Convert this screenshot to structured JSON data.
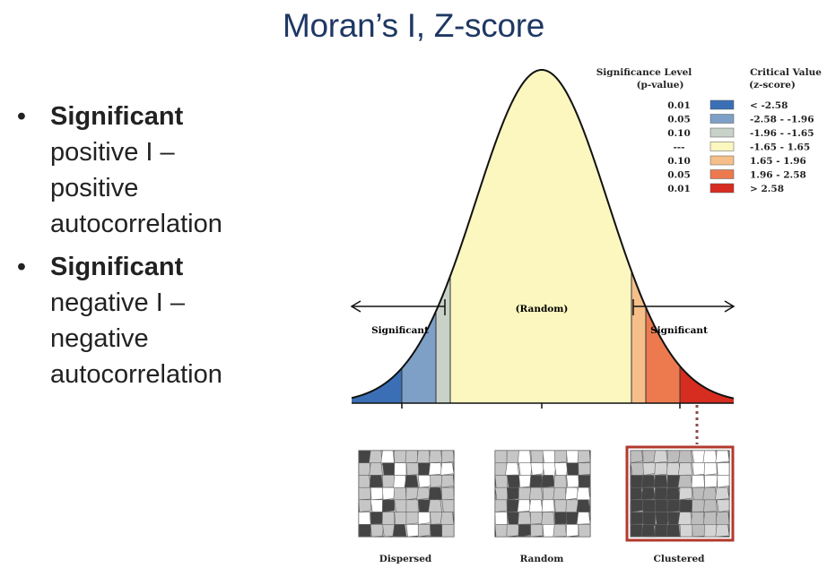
{
  "title": "Moran’s I,  Z-score",
  "bullets": [
    {
      "marker": "•",
      "strong": "Significant",
      "lines": [
        "positive I –",
        "positive",
        "autocorrelation"
      ]
    },
    {
      "marker": "•",
      "strong": "Significant",
      "lines": [
        "negative I –",
        "negative",
        "autocorrelation"
      ]
    }
  ],
  "diagram": {
    "labels": {
      "random_center": "(Random)",
      "significant_left": "Significant",
      "significant_right": "Significant"
    },
    "legend": {
      "header_left": [
        "Significance Level",
        "(p-value)"
      ],
      "header_right": [
        "Critical Value",
        "(z-score)"
      ],
      "rows": [
        {
          "p": "0.01",
          "z": "< -2.58",
          "color": "#3b6fb5"
        },
        {
          "p": "0.05",
          "z": "-2.58 - -1.96",
          "color": "#7fa0c6"
        },
        {
          "p": "0.10",
          "z": "-1.96 - -1.65",
          "color": "#c8d2c8"
        },
        {
          "p": "---",
          "z": "-1.65 - 1.65",
          "color": "#fbf7bf"
        },
        {
          "p": "0.10",
          "z": "1.65 - 1.96",
          "color": "#f6bf8a"
        },
        {
          "p": "0.05",
          "z": "1.96 - 2.58",
          "color": "#ec7a4e"
        },
        {
          "p": "0.01",
          "z": "> 2.58",
          "color": "#d62d20"
        }
      ]
    },
    "maps": [
      {
        "label": "Dispersed"
      },
      {
        "label": "Random"
      },
      {
        "label": "Clustered"
      }
    ],
    "colors": {
      "curve_fill": "#fbf7bf",
      "curve_stroke": "#111111",
      "highlight_frame": "#b23a2e",
      "dotted_line": "#8b4a4a"
    }
  }
}
